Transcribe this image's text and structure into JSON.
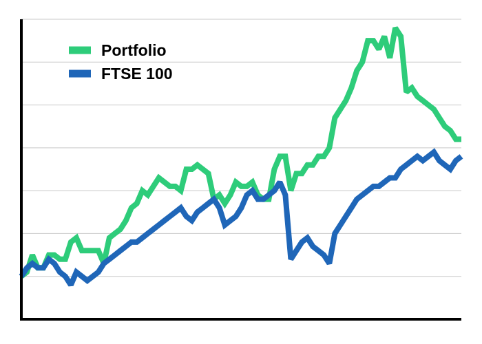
{
  "colors": {
    "portfolio": "#2ecc7a",
    "ftse": "#1f66b8",
    "axis": "#000000",
    "grid": "#c8c8c8"
  },
  "chart_data": {
    "type": "line",
    "title": "",
    "xlabel": "",
    "ylabel": "",
    "grid": true,
    "legend_position": "top-left",
    "ylim": [
      -1,
      6
    ],
    "series": [
      {
        "name": "Portfolio",
        "color": "#2ecc7a",
        "values": [
          0.0,
          0.1,
          0.5,
          0.2,
          0.2,
          0.5,
          0.5,
          0.4,
          0.4,
          0.8,
          0.9,
          0.6,
          0.6,
          0.6,
          0.6,
          0.3,
          0.9,
          1.0,
          1.1,
          1.3,
          1.6,
          1.7,
          2.0,
          1.9,
          2.1,
          2.3,
          2.2,
          2.1,
          2.1,
          2.0,
          2.5,
          2.5,
          2.6,
          2.5,
          2.4,
          1.8,
          1.9,
          1.7,
          1.9,
          2.2,
          2.1,
          2.1,
          2.2,
          1.9,
          1.8,
          1.8,
          2.5,
          2.8,
          2.8,
          2.0,
          2.4,
          2.4,
          2.6,
          2.6,
          2.8,
          2.8,
          3.0,
          3.7,
          3.9,
          4.1,
          4.4,
          4.8,
          5.0,
          5.5,
          5.5,
          5.3,
          5.6,
          5.1,
          5.8,
          5.6,
          4.3,
          4.4,
          4.2,
          4.1,
          4.0,
          3.9,
          3.7,
          3.5,
          3.4,
          3.2,
          3.2
        ]
      },
      {
        "name": "FTSE 100",
        "color": "#1f66b8",
        "values": [
          0.0,
          0.2,
          0.3,
          0.2,
          0.2,
          0.4,
          0.3,
          0.1,
          0.0,
          -0.2,
          0.1,
          0.0,
          -0.1,
          0.0,
          0.1,
          0.3,
          0.4,
          0.5,
          0.6,
          0.7,
          0.8,
          0.8,
          0.9,
          1.0,
          1.1,
          1.2,
          1.3,
          1.4,
          1.5,
          1.6,
          1.4,
          1.3,
          1.5,
          1.6,
          1.7,
          1.8,
          1.6,
          1.2,
          1.3,
          1.4,
          1.6,
          1.9,
          2.0,
          1.8,
          1.8,
          1.9,
          2.0,
          2.2,
          1.9,
          0.4,
          0.6,
          0.8,
          0.9,
          0.7,
          0.6,
          0.5,
          0.3,
          1.0,
          1.2,
          1.4,
          1.6,
          1.8,
          1.9,
          2.0,
          2.1,
          2.1,
          2.2,
          2.3,
          2.3,
          2.5,
          2.6,
          2.7,
          2.8,
          2.7,
          2.8,
          2.9,
          2.7,
          2.6,
          2.5,
          2.7,
          2.8
        ]
      }
    ]
  }
}
